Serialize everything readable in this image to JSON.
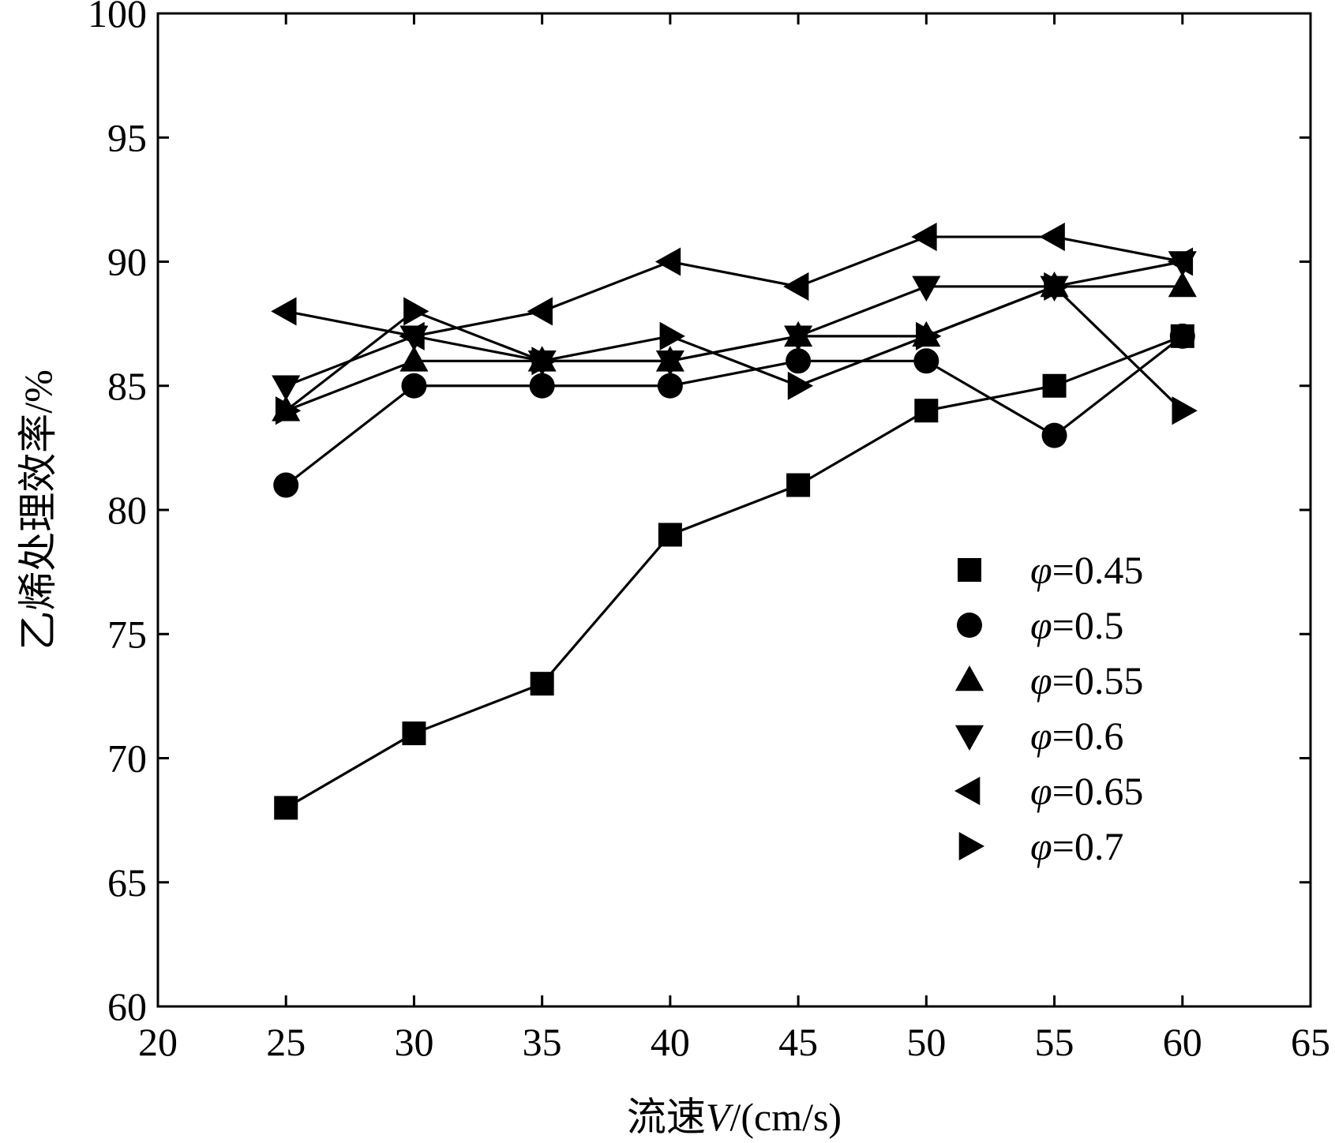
{
  "chart_data": {
    "type": "line",
    "title": "",
    "xlabel": "流速V/(cm/s)",
    "xlabel_parts": {
      "prefix": "流速",
      "var": "V",
      "suffix": "/(cm/s)"
    },
    "ylabel": "乙烯处理效率/%",
    "xlim": [
      20,
      65
    ],
    "ylim": [
      60,
      100
    ],
    "xticks": [
      20,
      25,
      30,
      35,
      40,
      45,
      50,
      55,
      60,
      65
    ],
    "yticks": [
      60,
      65,
      70,
      75,
      80,
      85,
      90,
      95,
      100
    ],
    "x": [
      25,
      30,
      35,
      40,
      45,
      50,
      55,
      60
    ],
    "legend_position": "right-middle",
    "series": [
      {
        "name": "φ=0.45",
        "symbol": "φ",
        "label": "=0.45",
        "marker": "square",
        "values": [
          68,
          71,
          73,
          79,
          81,
          84,
          85,
          87
        ]
      },
      {
        "name": "φ=0.5",
        "symbol": "φ",
        "label": "=0.5",
        "marker": "circle",
        "values": [
          81,
          85,
          85,
          85,
          86,
          86,
          83,
          87
        ]
      },
      {
        "name": "φ=0.55",
        "symbol": "φ",
        "label": "=0.55",
        "marker": "triangle-up",
        "values": [
          84,
          86,
          86,
          86,
          87,
          87,
          89,
          89
        ]
      },
      {
        "name": "φ=0.6",
        "symbol": "φ",
        "label": "=0.6",
        "marker": "triangle-down",
        "values": [
          85,
          87,
          86,
          86,
          87,
          89,
          89,
          90
        ]
      },
      {
        "name": "φ=0.65",
        "symbol": "φ",
        "label": "=0.65",
        "marker": "triangle-left",
        "values": [
          88,
          87,
          88,
          90,
          89,
          91,
          91,
          90
        ]
      },
      {
        "name": "φ=0.7",
        "symbol": "φ",
        "label": "=0.7",
        "marker": "triangle-right",
        "values": [
          84,
          88,
          86,
          87,
          85,
          87,
          89,
          84
        ]
      }
    ]
  }
}
